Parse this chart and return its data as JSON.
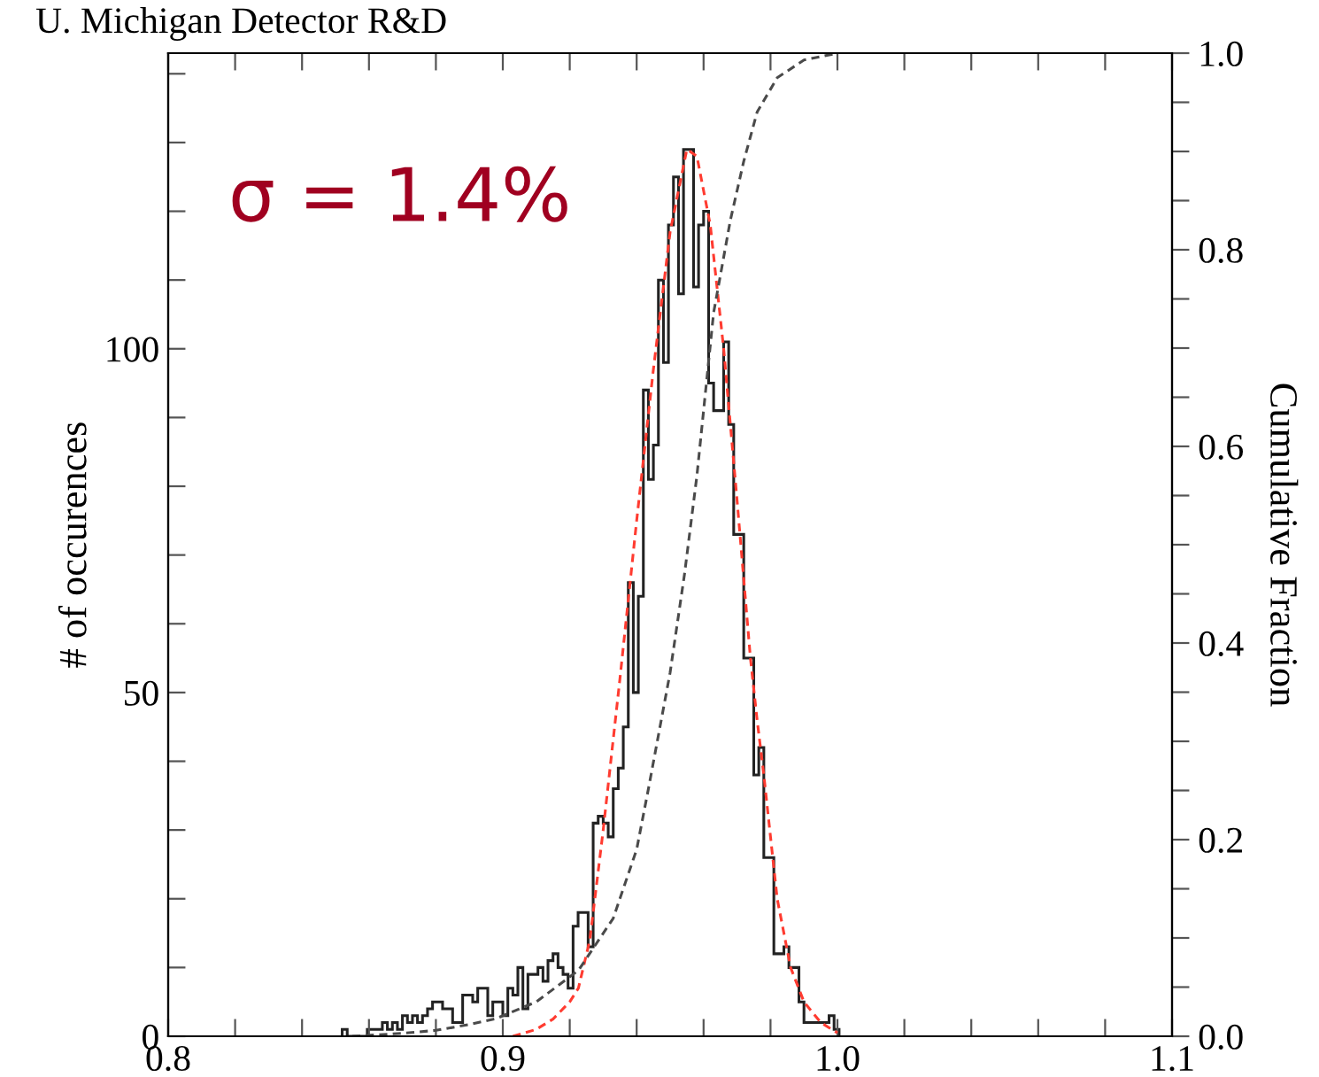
{
  "chart_data": {
    "type": "histogram",
    "title": "U. Michigan Detector R&D",
    "ylabel": "# of occurences",
    "y2label": "Cumulative Fraction",
    "annotations": [
      "σ = 1.4%"
    ],
    "xlim": [
      0.8,
      1.1
    ],
    "xticks": [
      0.8,
      {
        "value": 0.82,
        "label": null
      },
      {
        "value": 0.84,
        "label": null
      },
      {
        "value": 0.86,
        "label": null
      },
      {
        "value": 0.88,
        "label": null
      },
      0.9,
      {
        "value": 0.92,
        "label": null
      },
      {
        "value": 0.94,
        "label": null
      },
      {
        "value": 0.96,
        "label": null
      },
      {
        "value": 0.98,
        "label": null
      },
      {
        "value": 1.0,
        "label": "1.0"
      },
      {
        "value": 1.02,
        "label": null
      },
      {
        "value": 1.04,
        "label": null
      },
      {
        "value": 1.06,
        "label": null
      },
      {
        "value": 1.08,
        "label": null
      },
      1.1
    ],
    "ylim": [
      0,
      143
    ],
    "yticks": [
      0,
      {
        "value": 10,
        "label": null
      },
      {
        "value": 20,
        "label": null
      },
      {
        "value": 30,
        "label": null
      },
      {
        "value": 40,
        "label": null
      },
      50,
      {
        "value": 60,
        "label": null
      },
      {
        "value": 70,
        "label": null
      },
      {
        "value": 80,
        "label": null
      },
      {
        "value": 90,
        "label": null
      },
      100,
      {
        "value": 110,
        "label": null
      },
      {
        "value": 120,
        "label": null
      },
      {
        "value": 130,
        "label": null
      },
      {
        "value": 140,
        "label": null
      }
    ],
    "y2lim": [
      0,
      1.0
    ],
    "y2ticks": [
      {
        "value": 0,
        "label": "0.0"
      },
      {
        "value": 0.05,
        "label": null
      },
      {
        "value": 0.1,
        "label": null
      },
      {
        "value": 0.15,
        "label": null
      },
      0.2,
      {
        "value": 0.25,
        "label": null
      },
      {
        "value": 0.3,
        "label": null
      },
      {
        "value": 0.35,
        "label": null
      },
      0.4,
      {
        "value": 0.45,
        "label": null
      },
      {
        "value": 0.5,
        "label": null
      },
      {
        "value": 0.55,
        "label": null
      },
      0.6,
      {
        "value": 0.65,
        "label": null
      },
      {
        "value": 0.7,
        "label": null
      },
      {
        "value": 0.75,
        "label": null
      },
      0.8,
      {
        "value": 0.85,
        "label": null
      },
      {
        "value": 0.9,
        "label": null
      },
      {
        "value": 0.95,
        "label": null
      },
      {
        "value": 1,
        "label": "1.0"
      }
    ],
    "grid": false,
    "legend": false,
    "series": [
      {
        "color": "#222222",
        "bins": [
          0.852,
          0.8535,
          0.855,
          0.8565,
          0.858,
          0.8595,
          0.861,
          0.8625,
          0.864,
          0.8655,
          0.867,
          0.8685,
          0.87,
          0.8715,
          0.873,
          0.8745,
          0.876,
          0.8775,
          0.879,
          0.8805,
          0.882,
          0.8835,
          0.885,
          0.8865,
          0.888,
          0.8895,
          0.891,
          0.8925,
          0.894,
          0.8955,
          0.897,
          0.8985,
          0.9,
          0.9015,
          0.903,
          0.9045,
          0.906,
          0.9075,
          0.909,
          0.9105,
          0.912,
          0.9135,
          0.915,
          0.9165,
          0.918,
          0.9195,
          0.921,
          0.9225,
          0.924,
          0.9255,
          0.927,
          0.9285,
          0.93,
          0.9315,
          0.933,
          0.9345,
          0.936,
          0.9375,
          0.939,
          0.9405,
          0.942,
          0.9435,
          0.945,
          0.9465,
          0.948,
          0.9495,
          0.951,
          0.9525,
          0.954,
          0.9555,
          0.957,
          0.9585,
          0.96,
          0.9615,
          0.963,
          0.9645,
          0.966,
          0.9675,
          0.969,
          0.9705,
          0.972,
          0.9735,
          0.975,
          0.9765,
          0.978,
          0.9795,
          0.981,
          0.9825,
          0.984,
          0.9855,
          0.987,
          0.9885,
          0.99,
          0.9915,
          0.993,
          0.9945,
          0.996,
          0.9975,
          0.999,
          1.0005
        ],
        "values": [
          1,
          0,
          0,
          0,
          0,
          1,
          1,
          1,
          2,
          1,
          2,
          1,
          3,
          2,
          3,
          2,
          3,
          4,
          5,
          5,
          4,
          4,
          2,
          2,
          6,
          6,
          5,
          7,
          7,
          3,
          5,
          5,
          3,
          7,
          6,
          10,
          4,
          9,
          9,
          10,
          8,
          11,
          12,
          10,
          9,
          7,
          16,
          18,
          18,
          13,
          31,
          32,
          31,
          29,
          36,
          39,
          45,
          66,
          50,
          64,
          94,
          81,
          86,
          110,
          98,
          118,
          125,
          108,
          129,
          129,
          109,
          118,
          120,
          95,
          91,
          91,
          101,
          89,
          73,
          73,
          55,
          55,
          38,
          42,
          26,
          26,
          12,
          12,
          13,
          10,
          10,
          5,
          2,
          2,
          2,
          2,
          2,
          3,
          1
        ]
      },
      {
        "type": "line",
        "color": "#ff3b30",
        "line_style": "dashed",
        "x": [
          0.903,
          0.91,
          0.915,
          0.92,
          0.9226,
          0.926,
          0.93,
          0.935,
          0.94,
          0.945,
          0.95,
          0.955,
          0.958,
          0.962,
          0.966,
          0.97,
          0.974,
          0.976,
          0.978,
          0.982,
          0.986,
          0.99,
          0.995,
          1.0
        ],
        "values": [
          0,
          1,
          2.5,
          5,
          7,
          14,
          30,
          52,
          75,
          97,
          117,
          129,
          128,
          118,
          100,
          78,
          55,
          46,
          38,
          20,
          10,
          5,
          2,
          0.5
        ]
      },
      {
        "type": "line",
        "axis": "y2",
        "color": "#4a4a4a",
        "line_style": "dashed",
        "x": [
          0.855,
          0.87,
          0.88,
          0.89,
          0.898,
          0.91,
          0.9226,
          0.933,
          0.94,
          0.9437,
          0.95,
          0.9543,
          0.958,
          0.963,
          0.968,
          0.972,
          0.976,
          0.982,
          0.99,
          1.0
        ],
        "values": [
          0,
          0.003,
          0.006,
          0.012,
          0.018,
          0.035,
          0.067,
          0.12,
          0.19,
          0.255,
          0.37,
          0.47,
          0.57,
          0.736,
          0.83,
          0.89,
          0.94,
          0.975,
          0.993,
          1.0
        ]
      }
    ]
  }
}
